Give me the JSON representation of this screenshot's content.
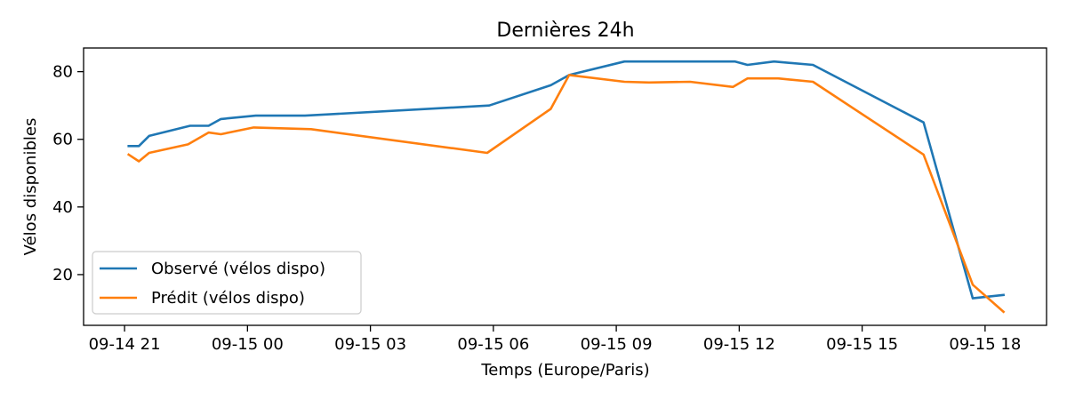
{
  "chart_data": {
    "type": "line",
    "title": "Dernières 24h",
    "xlabel": "Temps (Europe/Paris)",
    "ylabel": "Vélos disponibles",
    "x_tick_labels": [
      "09-14 21",
      "09-15 00",
      "09-15 03",
      "09-15 06",
      "09-15 09",
      "09-15 12",
      "09-15 15",
      "09-15 18"
    ],
    "x_tick_hours": [
      21,
      24,
      27,
      30,
      33,
      36,
      39,
      42
    ],
    "xlim_hours": [
      20.0,
      43.5
    ],
    "y_ticks": [
      20,
      40,
      60,
      80
    ],
    "ylim": [
      5,
      87
    ],
    "grid": false,
    "legend_position": "lower-left",
    "series": [
      {
        "name": "Observé (vélos dispo)",
        "color": "#1f77b4",
        "x_hours": [
          21.1,
          21.35,
          21.6,
          22.6,
          23.05,
          23.35,
          24.2,
          25.4,
          29.9,
          31.4,
          31.85,
          33.2,
          35.9,
          36.2,
          36.85,
          37.8,
          40.5,
          41.7,
          42.45
        ],
        "values": [
          58,
          58,
          61,
          64,
          64,
          66,
          67,
          67,
          70,
          76,
          79,
          83,
          83,
          82,
          83,
          82,
          65,
          13,
          14
        ]
      },
      {
        "name": "Prédit (vélos dispo)",
        "color": "#ff7f0e",
        "x_hours": [
          21.1,
          21.35,
          21.6,
          22.55,
          23.05,
          23.35,
          24.15,
          25.55,
          29.85,
          31.4,
          31.85,
          33.2,
          33.8,
          34.8,
          35.85,
          36.2,
          36.95,
          37.8,
          40.5,
          41.7,
          42.45
        ],
        "values": [
          55.5,
          53.5,
          56,
          58.5,
          62,
          61.5,
          63.5,
          63,
          56,
          69,
          79,
          77,
          76.8,
          77,
          75.5,
          78,
          78,
          77,
          55.5,
          17,
          9
        ]
      }
    ]
  }
}
